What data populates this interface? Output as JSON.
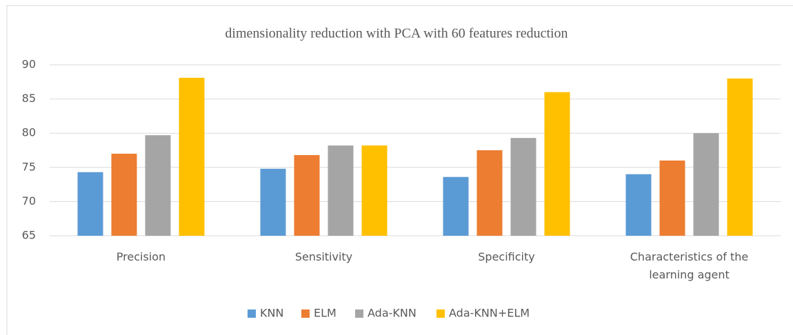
{
  "chart_data": {
    "type": "bar",
    "title": "dimensionality reduction with PCA with 60 features reduction",
    "categories": [
      "Precision",
      "Sensitivity",
      "Specificity",
      "Characteristics of the learning agent"
    ],
    "series": [
      {
        "name": "KNN",
        "color": "#5b9bd5",
        "values": [
          74.3,
          74.8,
          73.6,
          74
        ]
      },
      {
        "name": "ELM",
        "color": "#ed7d31",
        "values": [
          77,
          76.8,
          77.5,
          76
        ]
      },
      {
        "name": "Ada-KNN",
        "color": "#a5a5a5",
        "values": [
          79.7,
          78.2,
          79.3,
          80
        ]
      },
      {
        "name": "Ada-KNN+ELM",
        "color": "#ffc000",
        "values": [
          88.1,
          78.2,
          86,
          88
        ]
      }
    ],
    "ylim": [
      65,
      90
    ],
    "yticks": [
      65,
      70,
      75,
      80,
      85,
      90
    ],
    "grid": true,
    "legend": "bottom"
  }
}
